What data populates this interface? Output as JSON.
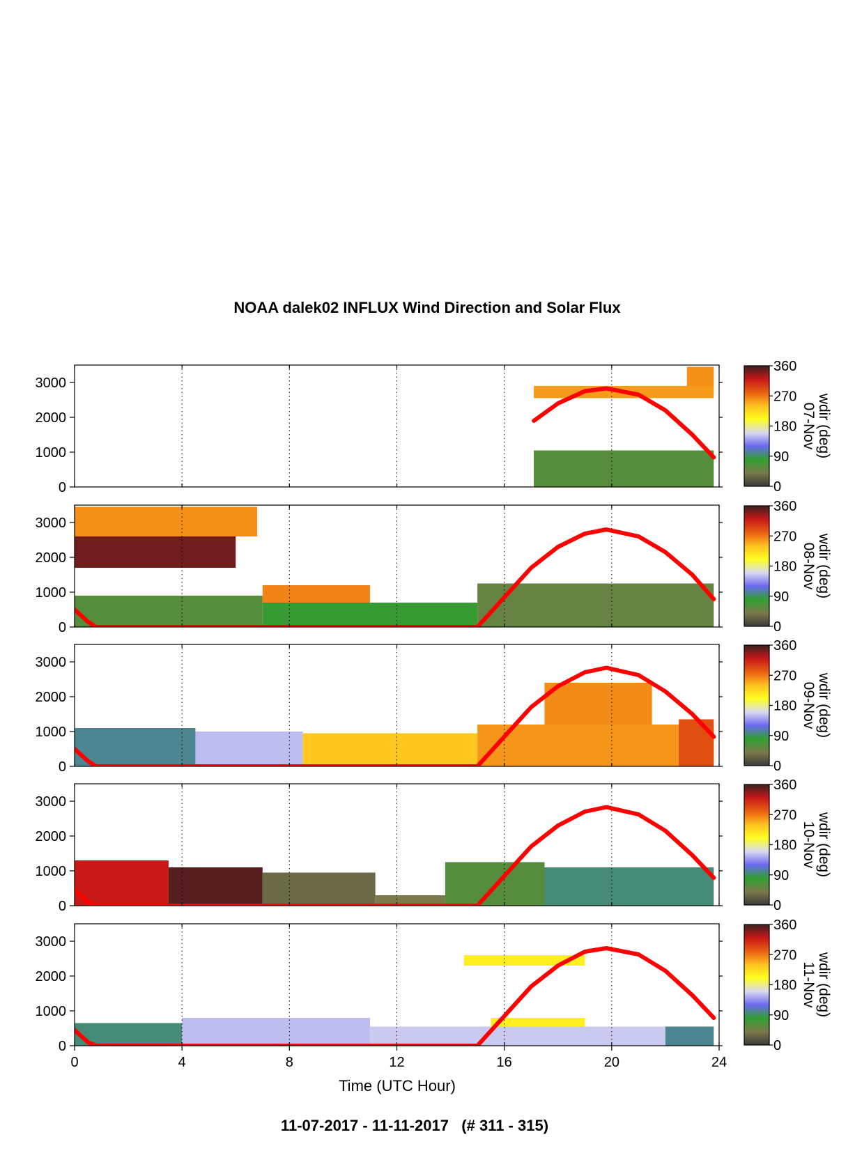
{
  "title": "NOAA dalek02 INFLUX Wind Direction and Solar Flux",
  "footer": "11-07-2017 - 11-11-2017   (# 311 - 315)",
  "chart_data": {
    "type": "heatmap",
    "xlabel": "Time (UTC Hour)",
    "xlim": [
      0,
      24
    ],
    "x_ticks": [
      "0",
      "4",
      "8",
      "12",
      "16",
      "20",
      "24"
    ],
    "ylim": [
      0,
      3500
    ],
    "y_ticks": [
      "0",
      "1000",
      "2000",
      "3000"
    ],
    "colorbar": {
      "label": "wdir (deg)",
      "range": [
        0,
        360
      ],
      "ticks": [
        "0",
        "90",
        "180",
        "270",
        "360"
      ],
      "colors": [
        "#3a3a3a",
        "#7a7a4a",
        "#2f9f2f",
        "#6a6af0",
        "#d8d8f0",
        "#ffff20",
        "#ffc020",
        "#e86010",
        "#c81818",
        "#3a2020"
      ]
    },
    "solar_flux_color": "#ff0000",
    "panels": [
      {
        "date": "07-Nov",
        "regions": [
          {
            "x0": 17.1,
            "x1": 23.8,
            "y0": 0,
            "y1": 1050,
            "wdir": 60
          },
          {
            "x0": 17.1,
            "x1": 23.8,
            "y0": 2550,
            "y1": 2900,
            "wdir": 255
          },
          {
            "x0": 22.8,
            "x1": 23.8,
            "y0": 2900,
            "y1": 3450,
            "wdir": 260
          }
        ],
        "solar_flux": [
          [
            17.1,
            1900
          ],
          [
            18.0,
            2400
          ],
          [
            19.0,
            2750
          ],
          [
            19.8,
            2830
          ],
          [
            21.0,
            2650
          ],
          [
            22.0,
            2200
          ],
          [
            23.0,
            1500
          ],
          [
            23.8,
            850
          ]
        ]
      },
      {
        "date": "08-Nov",
        "regions": [
          {
            "x0": 0.0,
            "x1": 7.0,
            "y0": 0,
            "y1": 900,
            "wdir": 60
          },
          {
            "x0": 7.0,
            "x1": 15.0,
            "y0": 0,
            "y1": 700,
            "wdir": 75
          },
          {
            "x0": 15.0,
            "x1": 23.8,
            "y0": 0,
            "y1": 1250,
            "wdir": 50
          },
          {
            "x0": 0.0,
            "x1": 6.8,
            "y0": 2600,
            "y1": 3450,
            "wdir": 260
          },
          {
            "x0": 0.0,
            "x1": 6.0,
            "y0": 1700,
            "y1": 2600,
            "wdir": 345
          },
          {
            "x0": 7.0,
            "x1": 11.0,
            "y0": 700,
            "y1": 1200,
            "wdir": 265
          }
        ],
        "solar_flux": [
          [
            0.0,
            500
          ],
          [
            0.5,
            150
          ],
          [
            0.8,
            0
          ],
          [
            15.0,
            0
          ],
          [
            16.0,
            850
          ],
          [
            17.0,
            1700
          ],
          [
            18.0,
            2300
          ],
          [
            19.0,
            2680
          ],
          [
            19.8,
            2800
          ],
          [
            21.0,
            2600
          ],
          [
            22.0,
            2150
          ],
          [
            23.0,
            1500
          ],
          [
            23.8,
            800
          ]
        ]
      },
      {
        "date": "09-Nov",
        "regions": [
          {
            "x0": 0.0,
            "x1": 4.5,
            "y0": 0,
            "y1": 1100,
            "wdir": 100
          },
          {
            "x0": 4.5,
            "x1": 8.5,
            "y0": 0,
            "y1": 1000,
            "wdir": 150
          },
          {
            "x0": 8.5,
            "x1": 15.0,
            "y0": 0,
            "y1": 950,
            "wdir": 235
          },
          {
            "x0": 15.0,
            "x1": 23.8,
            "y0": 0,
            "y1": 1200,
            "wdir": 258
          },
          {
            "x0": 17.5,
            "x1": 21.5,
            "y0": 1200,
            "y1": 2400,
            "wdir": 262
          },
          {
            "x0": 22.5,
            "x1": 23.8,
            "y0": 0,
            "y1": 1350,
            "wdir": 290
          }
        ],
        "solar_flux": [
          [
            0.0,
            500
          ],
          [
            0.5,
            150
          ],
          [
            0.8,
            0
          ],
          [
            15.0,
            0
          ],
          [
            16.0,
            850
          ],
          [
            17.0,
            1700
          ],
          [
            18.0,
            2300
          ],
          [
            19.0,
            2700
          ],
          [
            19.8,
            2830
          ],
          [
            21.0,
            2620
          ],
          [
            22.0,
            2150
          ],
          [
            23.0,
            1500
          ],
          [
            23.8,
            850
          ]
        ]
      },
      {
        "date": "10-Nov",
        "regions": [
          {
            "x0": 0.0,
            "x1": 3.5,
            "y0": 0,
            "y1": 1300,
            "wdir": 320
          },
          {
            "x0": 3.5,
            "x1": 7.0,
            "y0": 0,
            "y1": 1100,
            "wdir": 352
          },
          {
            "x0": 7.0,
            "x1": 11.2,
            "y0": 0,
            "y1": 950,
            "wdir": 30
          },
          {
            "x0": 11.2,
            "x1": 13.8,
            "y0": 0,
            "y1": 300,
            "wdir": 40
          },
          {
            "x0": 13.8,
            "x1": 17.5,
            "y0": 0,
            "y1": 1250,
            "wdir": 60
          },
          {
            "x0": 17.5,
            "x1": 23.8,
            "y0": 0,
            "y1": 1100,
            "wdir": 95
          }
        ],
        "solar_flux": [
          [
            0.0,
            450
          ],
          [
            0.5,
            100
          ],
          [
            0.8,
            0
          ],
          [
            15.0,
            0
          ],
          [
            16.0,
            850
          ],
          [
            17.0,
            1700
          ],
          [
            18.0,
            2300
          ],
          [
            19.0,
            2700
          ],
          [
            19.8,
            2830
          ],
          [
            21.0,
            2620
          ],
          [
            22.0,
            2150
          ],
          [
            23.0,
            1450
          ],
          [
            23.8,
            800
          ]
        ]
      },
      {
        "date": "11-Nov",
        "regions": [
          {
            "x0": 0.0,
            "x1": 4.0,
            "y0": 0,
            "y1": 650,
            "wdir": 95
          },
          {
            "x0": 4.0,
            "x1": 11.0,
            "y0": 0,
            "y1": 800,
            "wdir": 150
          },
          {
            "x0": 11.0,
            "x1": 22.0,
            "y0": 0,
            "y1": 550,
            "wdir": 155
          },
          {
            "x0": 22.0,
            "x1": 23.8,
            "y0": 0,
            "y1": 550,
            "wdir": 100
          },
          {
            "x0": 14.5,
            "x1": 19.0,
            "y0": 2300,
            "y1": 2600,
            "wdir": 210
          },
          {
            "x0": 15.5,
            "x1": 19.0,
            "y0": 550,
            "y1": 800,
            "wdir": 210
          }
        ],
        "solar_flux": [
          [
            0.0,
            450
          ],
          [
            0.5,
            100
          ],
          [
            0.8,
            0
          ],
          [
            15.0,
            0
          ],
          [
            16.0,
            850
          ],
          [
            17.0,
            1700
          ],
          [
            18.0,
            2300
          ],
          [
            19.0,
            2700
          ],
          [
            19.8,
            2800
          ],
          [
            21.0,
            2620
          ],
          [
            22.0,
            2150
          ],
          [
            23.0,
            1450
          ],
          [
            23.8,
            800
          ]
        ]
      }
    ]
  }
}
